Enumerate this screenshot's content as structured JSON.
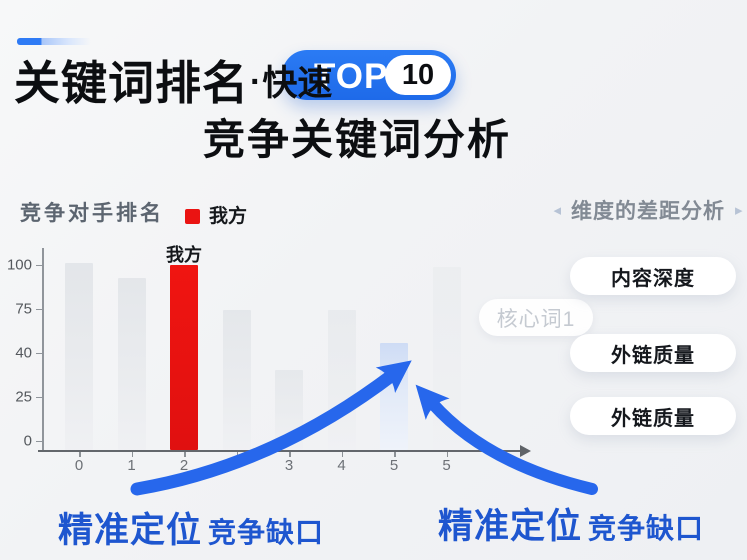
{
  "colors": {
    "accent_blue": "#2173f2",
    "arrow_blue": "#2767ec",
    "callout_blue": "#1e56cf",
    "our_side_red": "#ea1312",
    "highlight_bar_blue": "#d6e1f6",
    "competitor_bar_gray": "#e5e7ea"
  },
  "header": {
    "title_main": "关键词排名",
    "title_dot": "·",
    "title_fast": "快速",
    "badge_top": "TOP",
    "badge_number": "10",
    "subtitle": "竞争关键词分析"
  },
  "chart_section": {
    "label": "竞争对手排名",
    "legend_label": "我方",
    "watermark": "核心词1"
  },
  "chart_data": {
    "type": "bar",
    "title": "竞争对手排名",
    "x_labels": [
      "0",
      "1",
      "2",
      "",
      "3",
      "4",
      "5",
      "5"
    ],
    "values": [
      100,
      92,
      99,
      75,
      43,
      75,
      57,
      98
    ],
    "bar_styles": [
      "gray",
      "gray",
      "red",
      "gray",
      "gray",
      "gray",
      "blue",
      "gray"
    ],
    "bar_colors": [
      "#e5e7ea",
      "#e5e7ea",
      "#ea1312",
      "#e5e7ea",
      "#e5e7ea",
      "#e5e7ea",
      "#d6e1f6",
      "#e9ebee"
    ],
    "bar_opacities": [
      0.9,
      0.85,
      1,
      0.8,
      0.7,
      0.55,
      1,
      0.35
    ],
    "y_ticks": [
      "100",
      "75",
      "40",
      "25",
      "0"
    ],
    "ylim": [
      0,
      107
    ],
    "annotation": {
      "index": 2,
      "label": "我方"
    },
    "legend": [
      {
        "label": "我方",
        "color": "#ea1312"
      }
    ],
    "grid": false,
    "legend_position": "top"
  },
  "right_panel": {
    "nav_left": "◂",
    "nav_right": "▸",
    "header": "维度的差距分析",
    "buttons": [
      "内容深度",
      "外链质量",
      "外链质量"
    ]
  },
  "callouts": [
    {
      "strong": "精准定位",
      "rest": "竞争缺口"
    },
    {
      "strong": "精准定位",
      "rest": "竞争缺口"
    }
  ]
}
